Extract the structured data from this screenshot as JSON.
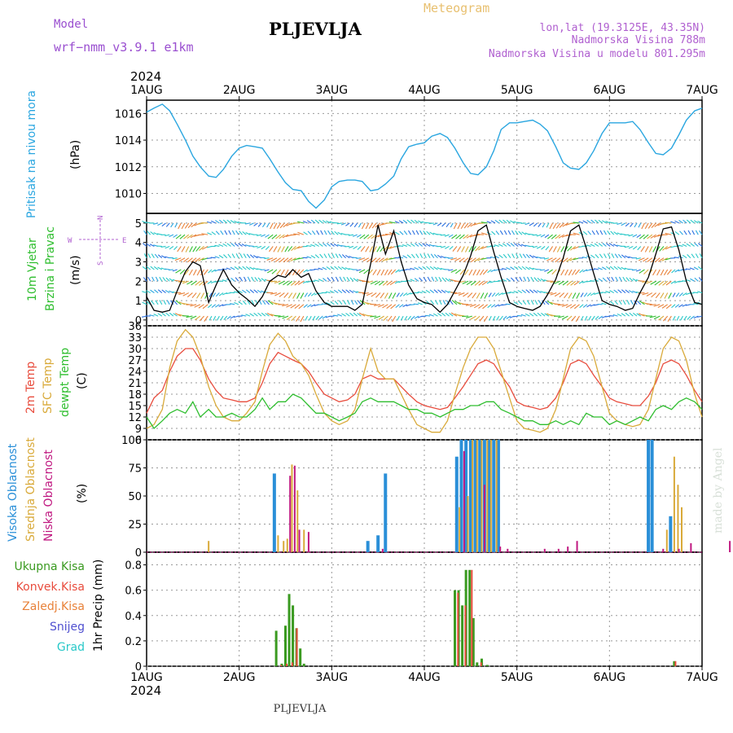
{
  "header": {
    "model_label": "Model",
    "model_name": "wrf−nmm_v3.9.1  e1km",
    "title": "PLJEVLJA",
    "meteogram": "Meteogram",
    "coords": "lon,lat (19.3125E, 43.35N)",
    "elevation": "Nadmorska Visina 788m",
    "model_elevation": "Nadmorska Visina u modelu 801.295m",
    "footer_title": "PLJEVLJA",
    "credit": "made by Angel"
  },
  "time_axis": {
    "year": "2024",
    "labels": [
      "1AUG",
      "2AUG",
      "3AUG",
      "4AUG",
      "5AUG",
      "6AUG",
      "7AUG"
    ],
    "range_days": [
      0,
      6
    ]
  },
  "colors": {
    "pressure": "#2aa6e0",
    "wind_speed": "#000000",
    "temp2m": "#e84c3d",
    "sfc": "#d9aa3a",
    "dewpt": "#2fbe2f",
    "cloud_high": "#2a8fd8",
    "cloud_mid": "#d9aa3a",
    "cloud_low": "#c01880",
    "rain_total": "#3a9a20",
    "rain_conv": "#e84c3d",
    "rain_frz": "#e8823a",
    "snow": "#5050d0",
    "graupel": "#28c8c8",
    "model_text": "#9a4fd0",
    "meteogram_text": "#e8c070",
    "coords_text": "#b060d0"
  },
  "chart_data": [
    {
      "id": "pressure",
      "type": "line",
      "title": "Pritisak na nivou mora",
      "ylabel": "(hPa)",
      "ylim": [
        1008.5,
        1017
      ],
      "yticks": [
        1010,
        1012,
        1014,
        1016
      ],
      "series": [
        {
          "x": [
            0,
            0.08,
            0.17,
            0.25,
            0.33,
            0.42,
            0.5,
            0.58,
            0.67,
            0.75,
            0.83,
            0.92,
            1,
            1.08,
            1.17,
            1.25,
            1.33,
            1.42,
            1.5,
            1.58,
            1.67,
            1.75,
            1.83,
            1.92,
            2,
            2.08,
            2.17,
            2.25,
            2.33,
            2.42,
            2.5,
            2.58,
            2.67,
            2.75,
            2.83,
            2.92,
            3,
            3.08,
            3.17,
            3.25,
            3.33,
            3.42,
            3.5,
            3.58,
            3.67,
            3.75,
            3.83,
            3.92,
            4,
            4.08,
            4.17,
            4.25,
            4.33,
            4.42,
            4.5,
            4.58,
            4.67,
            4.75,
            4.83,
            4.92,
            5,
            5.08,
            5.17,
            5.25,
            5.33,
            5.42,
            5.5,
            5.58,
            5.67,
            5.75,
            5.83,
            5.92,
            6
          ],
          "values": [
            1016.1,
            1016.4,
            1016.7,
            1016.2,
            1015.2,
            1014.0,
            1012.8,
            1012.0,
            1011.3,
            1011.2,
            1011.8,
            1012.8,
            1013.4,
            1013.6,
            1013.5,
            1013.4,
            1012.6,
            1011.6,
            1010.8,
            1010.3,
            1010.2,
            1009.4,
            1008.9,
            1009.5,
            1010.5,
            1010.9,
            1011.0,
            1011.0,
            1010.9,
            1010.2,
            1010.3,
            1010.7,
            1011.3,
            1012.6,
            1013.5,
            1013.7,
            1013.8,
            1014.3,
            1014.5,
            1014.2,
            1013.4,
            1012.3,
            1011.5,
            1011.4,
            1012.0,
            1013.2,
            1014.8,
            1015.3,
            1015.3,
            1015.4,
            1015.5,
            1015.2,
            1014.7,
            1013.5,
            1012.3,
            1011.9,
            1011.8,
            1012.3,
            1013.2,
            1014.5,
            1015.3,
            1015.3,
            1015.3,
            1015.4,
            1014.8,
            1013.8,
            1013.0,
            1012.9,
            1013.4,
            1014.4,
            1015.5,
            1016.2,
            1016.4
          ]
        }
      ]
    },
    {
      "id": "wind",
      "type": "line",
      "title": "10m Vjetar",
      "subtitle": "Brzina i Pravac",
      "ylabel": "(m/s)",
      "ylim": [
        -0.3,
        5.5
      ],
      "yticks": [
        0,
        1,
        2,
        3,
        4,
        5
      ],
      "legend_glyph": "N",
      "legend_w": "W",
      "legend_e": "E",
      "legend_s": "S",
      "series": [
        {
          "x": [
            0,
            0.08,
            0.17,
            0.25,
            0.33,
            0.42,
            0.5,
            0.58,
            0.67,
            0.75,
            0.83,
            0.92,
            1,
            1.08,
            1.17,
            1.25,
            1.33,
            1.42,
            1.5,
            1.58,
            1.67,
            1.75,
            1.83,
            1.92,
            2,
            2.08,
            2.17,
            2.25,
            2.33,
            2.42,
            2.5,
            2.58,
            2.67,
            2.75,
            2.83,
            2.92,
            3,
            3.08,
            3.17,
            3.25,
            3.33,
            3.42,
            3.5,
            3.58,
            3.67,
            3.75,
            3.83,
            3.92,
            4,
            4.08,
            4.17,
            4.25,
            4.33,
            4.42,
            4.5,
            4.58,
            4.67,
            4.75,
            4.83,
            4.92,
            5,
            5.08,
            5.17,
            5.25,
            5.33,
            5.42,
            5.5,
            5.58,
            5.67,
            5.75,
            5.83,
            5.92,
            6
          ],
          "values": [
            1.2,
            0.5,
            0.4,
            0.5,
            1.5,
            2.5,
            3.0,
            2.8,
            0.9,
            1.8,
            2.6,
            1.8,
            1.4,
            1.1,
            0.7,
            1.2,
            2.0,
            2.3,
            2.2,
            2.6,
            2.2,
            2.4,
            1.5,
            0.9,
            0.7,
            0.7,
            0.7,
            0.5,
            0.8,
            2.9,
            4.9,
            3.4,
            4.6,
            3.0,
            1.8,
            1.1,
            0.9,
            0.8,
            0.4,
            0.8,
            1.5,
            2.3,
            3.3,
            4.6,
            4.9,
            3.5,
            2.2,
            0.9,
            0.7,
            0.6,
            0.5,
            0.7,
            1.3,
            2.1,
            3.2,
            4.6,
            4.9,
            3.7,
            2.4,
            1.0,
            0.8,
            0.7,
            0.5,
            0.6,
            1.4,
            2.2,
            3.4,
            4.7,
            4.8,
            3.6,
            2.0,
            0.9,
            0.8
          ]
        }
      ]
    },
    {
      "id": "temperature",
      "type": "line",
      "title": "2m Temp",
      "title2": "SFC Temp",
      "title3": "dewpt Temp",
      "ylabel": "(C)",
      "ylim": [
        6,
        36
      ],
      "yticks": [
        6,
        9,
        12,
        15,
        18,
        21,
        24,
        27,
        30,
        33,
        36
      ],
      "x": [
        0,
        0.08,
        0.17,
        0.25,
        0.33,
        0.42,
        0.5,
        0.58,
        0.67,
        0.75,
        0.83,
        0.92,
        1,
        1.08,
        1.17,
        1.25,
        1.33,
        1.42,
        1.5,
        1.58,
        1.67,
        1.75,
        1.83,
        1.92,
        2,
        2.08,
        2.17,
        2.25,
        2.33,
        2.42,
        2.5,
        2.58,
        2.67,
        2.75,
        2.83,
        2.92,
        3,
        3.08,
        3.17,
        3.25,
        3.33,
        3.42,
        3.5,
        3.58,
        3.67,
        3.75,
        3.83,
        3.92,
        4,
        4.08,
        4.17,
        4.25,
        4.33,
        4.42,
        4.5,
        4.58,
        4.67,
        4.75,
        4.83,
        4.92,
        5,
        5.08,
        5.17,
        5.25,
        5.33,
        5.42,
        5.5,
        5.58,
        5.67,
        5.75,
        5.83,
        5.92,
        6
      ],
      "series": [
        {
          "name": "2m Temp",
          "values": [
            13,
            17,
            19,
            24,
            28,
            30,
            30,
            27,
            22,
            19,
            17,
            16.5,
            16,
            16,
            17,
            21,
            26,
            29,
            28,
            27,
            26,
            24,
            21,
            18,
            17,
            16,
            16.5,
            18,
            22,
            23,
            22,
            22,
            22,
            20,
            18,
            16,
            15,
            14.5,
            14,
            14.5,
            17,
            20,
            23,
            26,
            27,
            26,
            23,
            20,
            16,
            15,
            14.5,
            14,
            14.5,
            17,
            21,
            26,
            27,
            26,
            23,
            20,
            17,
            16,
            15.5,
            15,
            15,
            17.5,
            21,
            26,
            27,
            26,
            23,
            19,
            16
          ]
        },
        {
          "name": "SFC Temp",
          "values": [
            9,
            10,
            14,
            25,
            32,
            35,
            33,
            28,
            20,
            15,
            12,
            11,
            11,
            13,
            16,
            24,
            31,
            34,
            32,
            28,
            26,
            23,
            18,
            13,
            11,
            10,
            11,
            14,
            22,
            30,
            24,
            22,
            22,
            18,
            14,
            10,
            9,
            8,
            8,
            11,
            18,
            25,
            30,
            33,
            33,
            30,
            24,
            17,
            11,
            9,
            8.5,
            8,
            9,
            14,
            22,
            30,
            33,
            32,
            28,
            20,
            13,
            11,
            10,
            9.5,
            10,
            14,
            22,
            30,
            33,
            32,
            27,
            18,
            12
          ]
        },
        {
          "name": "dewpt Temp",
          "values": [
            12,
            9,
            11,
            13,
            14,
            13,
            16,
            12,
            14,
            12,
            12,
            13,
            12,
            12,
            14,
            17,
            14,
            16,
            16,
            18,
            17,
            15,
            13,
            13,
            12,
            11,
            12,
            13,
            16,
            17,
            16,
            16,
            16,
            15,
            14,
            14,
            13,
            13,
            12,
            13,
            14,
            14,
            15,
            15,
            16,
            16,
            14,
            13,
            12,
            11,
            11,
            10,
            10,
            11,
            10,
            11,
            10,
            13,
            12,
            12,
            10,
            11,
            10,
            11,
            12,
            11,
            14,
            15,
            14,
            16,
            17,
            16,
            14
          ]
        }
      ]
    },
    {
      "id": "clouds",
      "type": "bar",
      "title": "Visoka Oblacnost",
      "title2": "Srednja Oblacnost",
      "title3": "Niska  Oblacnost",
      "ylabel": "(%)",
      "ylim": [
        0,
        100
      ],
      "yticks": [
        0,
        25,
        50,
        75,
        100
      ],
      "series": [
        {
          "name": "Visoka Oblacnost",
          "x": [
            1.38,
            2.39,
            2.5,
            2.58,
            3.35,
            3.4,
            3.45,
            3.5,
            3.55,
            3.6,
            3.65,
            3.7,
            3.75,
            3.8,
            5.42,
            5.46,
            5.66
          ],
          "values": [
            70,
            10,
            15,
            70,
            85,
            100,
            100,
            100,
            100,
            100,
            100,
            100,
            100,
            100,
            100,
            100,
            32
          ]
        },
        {
          "name": "Srednja Oblacnost",
          "x": [
            0.67,
            1.42,
            1.48,
            1.52,
            1.57,
            1.63,
            1.7,
            3.38,
            3.47,
            3.52,
            3.57,
            3.62,
            3.68,
            3.72,
            3.78,
            5.62,
            5.7,
            5.74,
            5.78,
            6.7
          ],
          "values": [
            10,
            15,
            10,
            12,
            78,
            55,
            20,
            40,
            50,
            100,
            100,
            100,
            100,
            100,
            100,
            20,
            85,
            60,
            40,
            40
          ]
        },
        {
          "name": "Niska  Oblacnost",
          "x": [
            1.55,
            1.6,
            1.65,
            1.75,
            2.55,
            3.43,
            3.65,
            3.82,
            3.9,
            4.3,
            4.45,
            4.55,
            4.65,
            5.58,
            5.75,
            5.88,
            6.3,
            6.35,
            6.4,
            6.45,
            6.5,
            6.55
          ],
          "values": [
            68,
            77,
            20,
            18,
            3,
            90,
            60,
            5,
            3,
            3,
            3,
            5,
            10,
            3,
            3,
            8,
            10,
            10,
            10,
            10,
            12,
            22
          ]
        }
      ]
    },
    {
      "id": "precip",
      "type": "bar",
      "ylabel": "1hr Precip (mm)",
      "ylim": [
        0,
        0.9
      ],
      "yticks": [
        0,
        0.2,
        0.4,
        0.6,
        0.8
      ],
      "legend": [
        "Ukupna Kisa",
        "Konvek.Kisa",
        "Zaledj.Kisa",
        "Snijeg",
        "Grad"
      ],
      "series": [
        {
          "name": "Ukupna Kisa",
          "x": [
            1.4,
            1.46,
            1.5,
            1.54,
            1.58,
            1.62,
            1.66,
            1.7,
            3.33,
            3.37,
            3.41,
            3.45,
            3.49,
            3.53,
            3.57,
            3.62,
            3.68,
            5.7,
            6.65
          ],
          "values": [
            0.28,
            0.02,
            0.32,
            0.57,
            0.48,
            0.3,
            0.14,
            0.02,
            0.6,
            0.6,
            0.48,
            0.76,
            0.76,
            0.38,
            0.03,
            0.06,
            0.01,
            0.04,
            0.05
          ]
        },
        {
          "name": "Konvek.Kisa",
          "x": [
            1.44,
            1.5,
            1.56,
            1.61,
            3.35,
            3.43,
            3.5,
            3.6,
            5.7
          ],
          "values": [
            0.01,
            0.02,
            0.03,
            0.3,
            0.58,
            0.48,
            0.76,
            0.03,
            0.04
          ]
        }
      ]
    }
  ]
}
